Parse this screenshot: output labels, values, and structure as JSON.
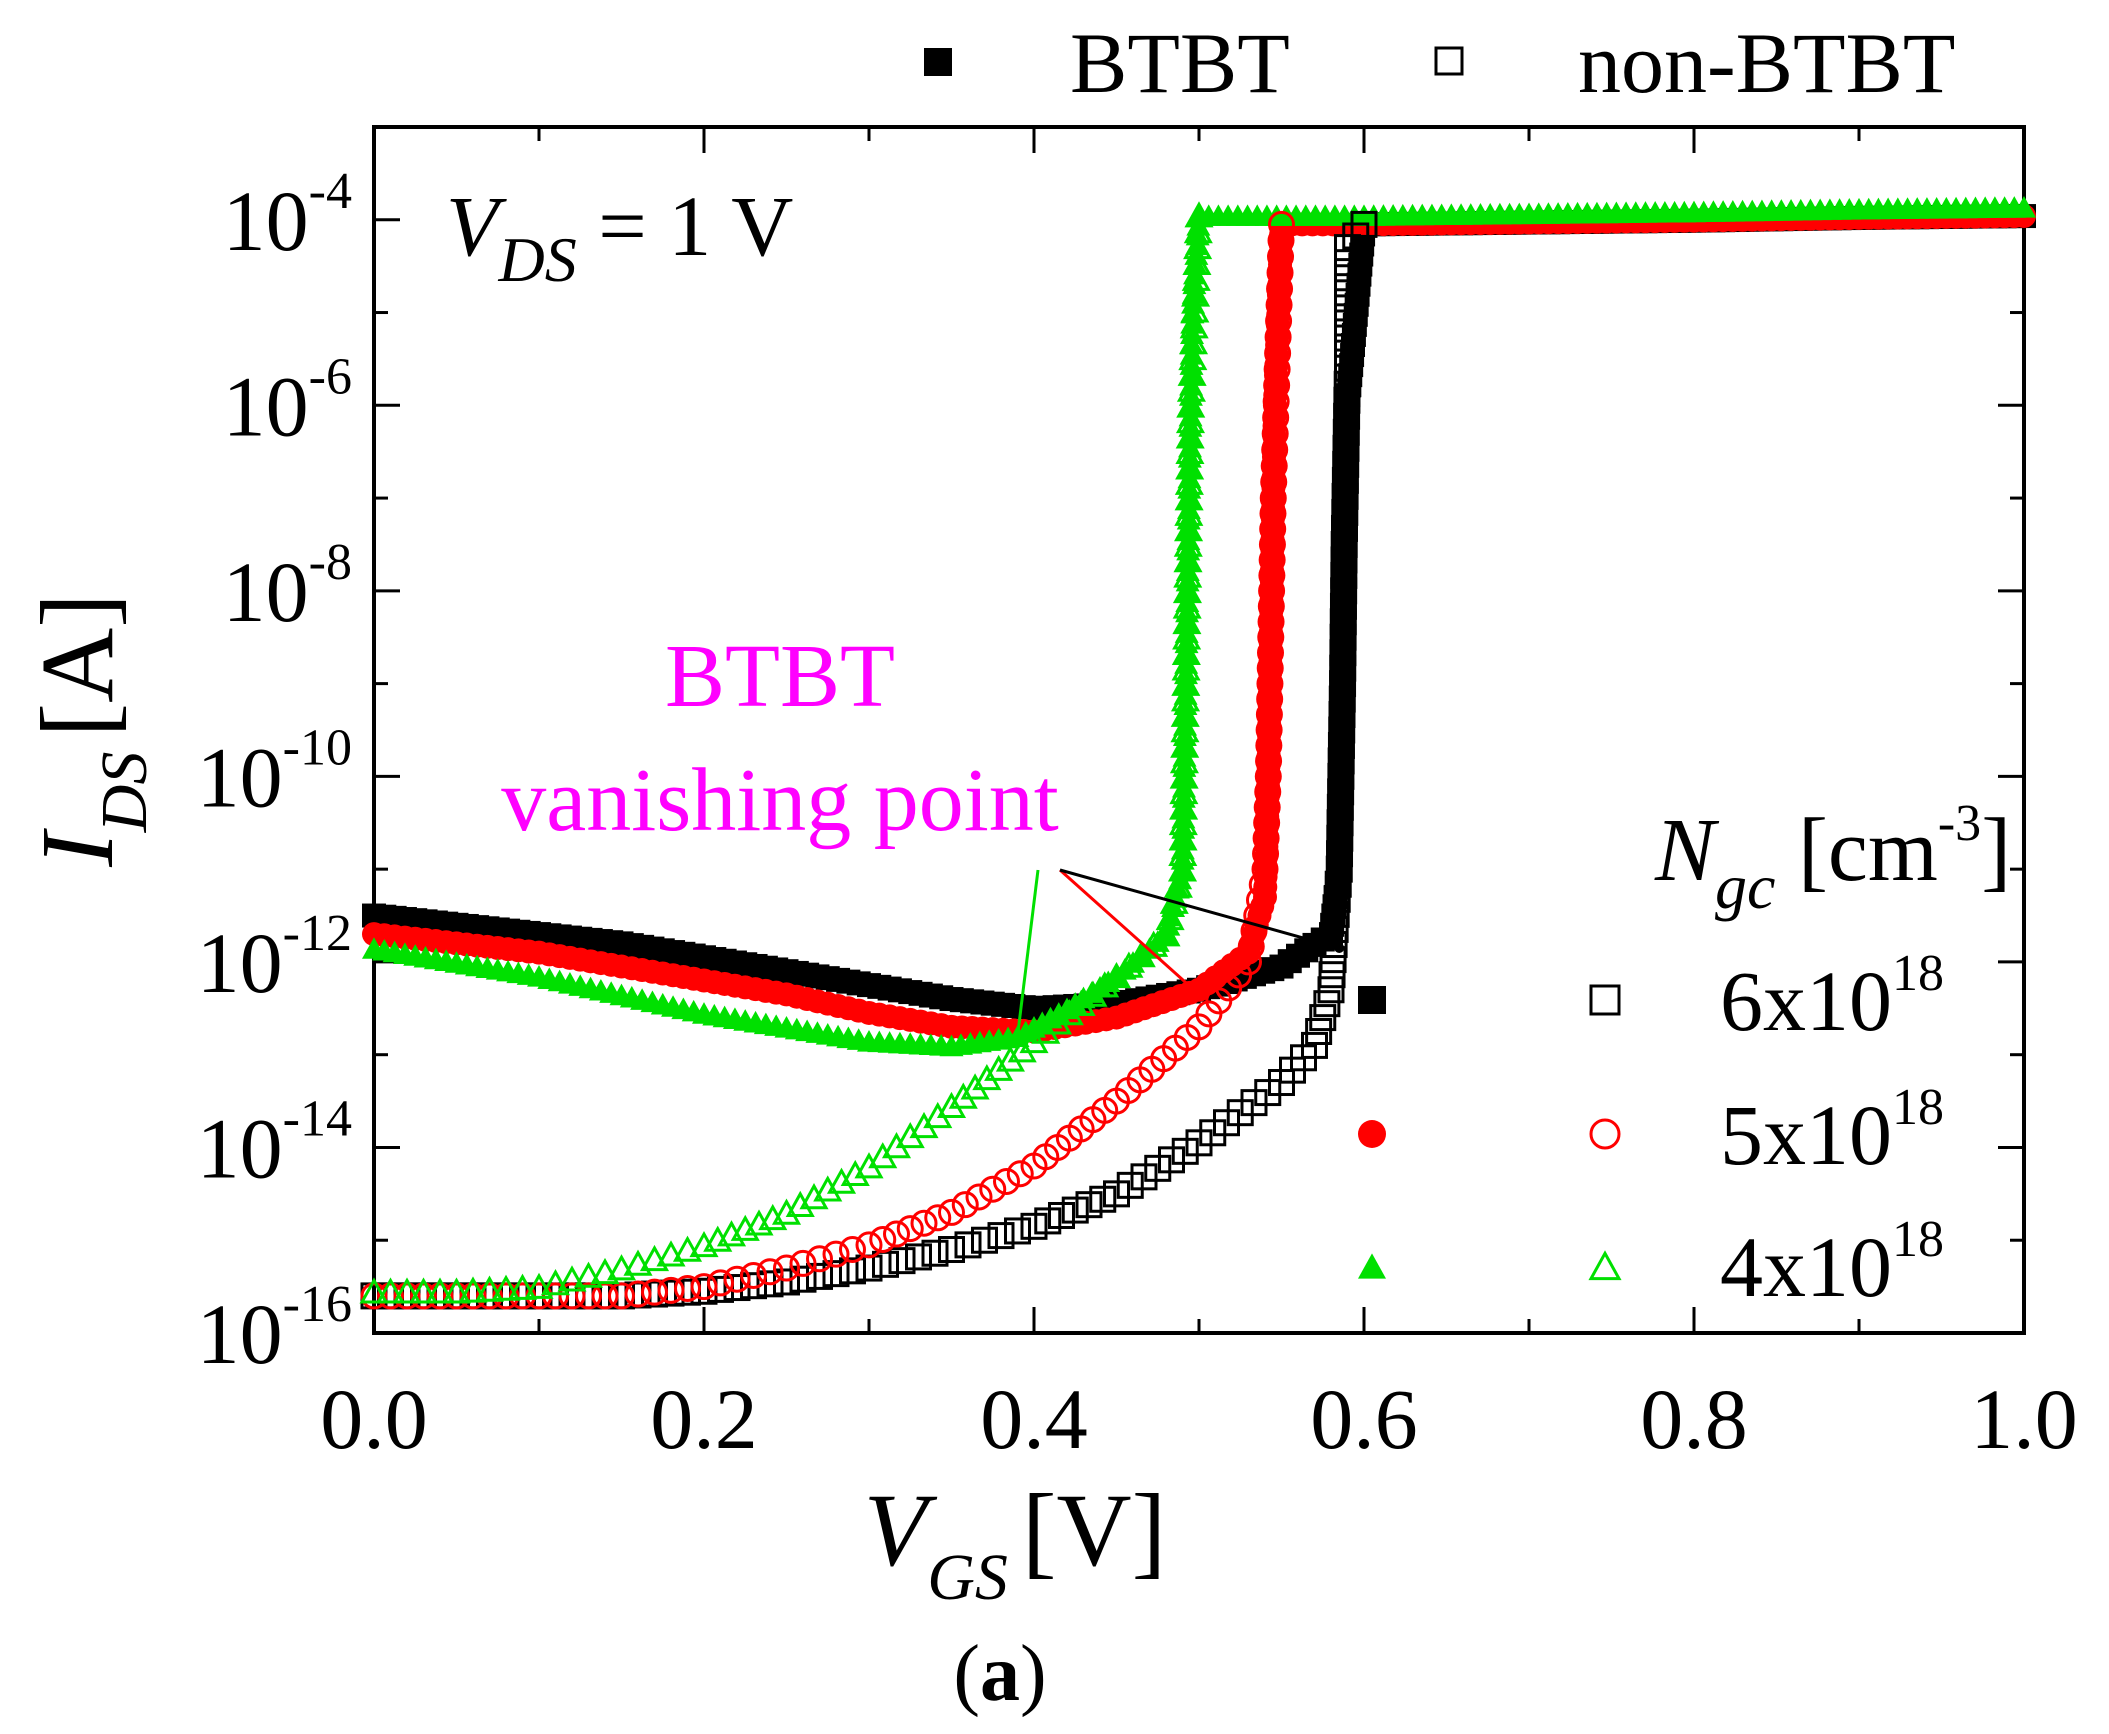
{
  "figure_label_parts": [
    "(",
    "a",
    ")"
  ],
  "colors": {
    "black": "#000000",
    "red": "#ff0000",
    "green": "#00e000",
    "magenta": "#ff00ff"
  },
  "chart_data": {
    "type": "scatter",
    "title": "",
    "xlabel": {
      "main": "V",
      "sub": "GS",
      "unit": "[V]"
    },
    "ylabel": {
      "main": "I",
      "sub": "DS",
      "unit": "[A]"
    },
    "xlim": [
      0.0,
      1.0
    ],
    "ylim_log10": [
      -16,
      -3
    ],
    "yscale": "log",
    "x_ticks": [
      "0.0",
      "0.2",
      "0.4",
      "0.6",
      "0.8",
      "1.0"
    ],
    "y_ticks": [
      {
        "base": "10",
        "exp": "-4",
        "value": -4
      },
      {
        "base": "10",
        "exp": "-6",
        "value": -6
      },
      {
        "base": "10",
        "exp": "-8",
        "value": -8
      },
      {
        "base": "10",
        "exp": "-10",
        "value": -10
      },
      {
        "base": "10",
        "exp": "-12",
        "value": -12
      },
      {
        "base": "10",
        "exp": "-14",
        "value": -14
      },
      {
        "base": "10",
        "exp": "-16",
        "value": -16
      }
    ],
    "condition": {
      "main": "V",
      "sub": "DS",
      "value": " = 1 V"
    },
    "legend_top": [
      {
        "marker": "filled-square",
        "label": "BTBT"
      },
      {
        "marker": "open-square",
        "label": "non-BTBT"
      }
    ],
    "legend_right": {
      "title": {
        "main": "N",
        "sub": "gc",
        "unit": " [cm",
        "exp": "-3",
        "close": "]"
      },
      "entries": [
        {
          "label_base": "6x10",
          "label_exp": "18",
          "color": "#000000",
          "shape": "square"
        },
        {
          "label_base": "5x10",
          "label_exp": "18",
          "color": "#ff0000",
          "shape": "circle"
        },
        {
          "label_base": "4x10",
          "label_exp": "18",
          "color": "#00e000",
          "shape": "triangle"
        }
      ]
    },
    "annotation": {
      "lines": [
        "BTBT",
        "vanishing point"
      ],
      "color": "#ff00ff",
      "points": [
        {
          "x": 0.39,
          "log10_y": -12.8,
          "color": "#00e000"
        },
        {
          "x": 0.5,
          "log10_y": -12.35,
          "color": "#ff0000"
        },
        {
          "x": 0.585,
          "log10_y": -11.85,
          "color": "#000000"
        }
      ]
    },
    "series": [
      {
        "name": "BTBT 6x10^18",
        "color": "#000000",
        "marker": "square",
        "filled": true,
        "points": [
          [
            0.0,
            -11.5
          ],
          [
            0.05,
            -11.6
          ],
          [
            0.1,
            -11.7
          ],
          [
            0.15,
            -11.8
          ],
          [
            0.2,
            -11.95
          ],
          [
            0.25,
            -12.1
          ],
          [
            0.3,
            -12.25
          ],
          [
            0.35,
            -12.4
          ],
          [
            0.4,
            -12.5
          ],
          [
            0.45,
            -12.45
          ],
          [
            0.5,
            -12.3
          ],
          [
            0.55,
            -12.05
          ],
          [
            0.58,
            -11.7
          ],
          [
            0.585,
            -11.0
          ],
          [
            0.586,
            -10.0
          ],
          [
            0.587,
            -9.0
          ],
          [
            0.588,
            -8.0
          ],
          [
            0.589,
            -7.0
          ],
          [
            0.59,
            -6.0
          ],
          [
            0.6,
            -4.05
          ],
          [
            0.7,
            -4.03
          ],
          [
            0.8,
            -4.01
          ],
          [
            0.9,
            -3.98
          ],
          [
            1.0,
            -3.96
          ]
        ]
      },
      {
        "name": "BTBT 5x10^18",
        "color": "#ff0000",
        "marker": "circle",
        "filled": true,
        "points": [
          [
            0.0,
            -11.7
          ],
          [
            0.05,
            -11.8
          ],
          [
            0.1,
            -11.9
          ],
          [
            0.15,
            -12.05
          ],
          [
            0.2,
            -12.2
          ],
          [
            0.25,
            -12.35
          ],
          [
            0.3,
            -12.55
          ],
          [
            0.35,
            -12.7
          ],
          [
            0.4,
            -12.75
          ],
          [
            0.45,
            -12.6
          ],
          [
            0.5,
            -12.3
          ],
          [
            0.53,
            -11.9
          ],
          [
            0.54,
            -11.3
          ],
          [
            0.542,
            -10.0
          ],
          [
            0.543,
            -9.0
          ],
          [
            0.544,
            -8.0
          ],
          [
            0.545,
            -7.0
          ],
          [
            0.546,
            -6.0
          ],
          [
            0.55,
            -4.05
          ],
          [
            0.6,
            -4.05
          ],
          [
            0.7,
            -4.03
          ],
          [
            0.8,
            -4.01
          ],
          [
            0.9,
            -3.98
          ],
          [
            1.0,
            -3.96
          ]
        ]
      },
      {
        "name": "BTBT 4x10^18",
        "color": "#00e000",
        "marker": "triangle",
        "filled": true,
        "points": [
          [
            0.0,
            -11.85
          ],
          [
            0.05,
            -12.0
          ],
          [
            0.1,
            -12.15
          ],
          [
            0.15,
            -12.35
          ],
          [
            0.2,
            -12.55
          ],
          [
            0.25,
            -12.7
          ],
          [
            0.3,
            -12.85
          ],
          [
            0.35,
            -12.9
          ],
          [
            0.39,
            -12.8
          ],
          [
            0.42,
            -12.5
          ],
          [
            0.45,
            -12.15
          ],
          [
            0.48,
            -11.7
          ],
          [
            0.49,
            -11.0
          ],
          [
            0.491,
            -10.0
          ],
          [
            0.492,
            -9.0
          ],
          [
            0.493,
            -8.0
          ],
          [
            0.494,
            -7.0
          ],
          [
            0.495,
            -6.0
          ],
          [
            0.496,
            -5.0
          ],
          [
            0.5,
            -3.95
          ],
          [
            0.6,
            -3.95
          ],
          [
            0.7,
            -3.93
          ],
          [
            0.8,
            -3.91
          ],
          [
            0.9,
            -3.88
          ],
          [
            1.0,
            -3.86
          ]
        ]
      },
      {
        "name": "non-BTBT 6x10^18",
        "color": "#000000",
        "marker": "square",
        "filled": false,
        "points": [
          [
            0.0,
            -15.6
          ],
          [
            0.05,
            -15.6
          ],
          [
            0.1,
            -15.6
          ],
          [
            0.15,
            -15.6
          ],
          [
            0.2,
            -15.55
          ],
          [
            0.25,
            -15.45
          ],
          [
            0.3,
            -15.3
          ],
          [
            0.35,
            -15.1
          ],
          [
            0.4,
            -14.85
          ],
          [
            0.45,
            -14.5
          ],
          [
            0.5,
            -13.95
          ],
          [
            0.55,
            -13.3
          ],
          [
            0.57,
            -12.9
          ],
          [
            0.58,
            -12.3
          ],
          [
            0.585,
            -11.0
          ],
          [
            0.587,
            -9.0
          ],
          [
            0.588,
            -7.5
          ],
          [
            0.59,
            -5.6
          ],
          [
            0.59,
            -4.3
          ],
          [
            0.6,
            -4.05
          ]
        ]
      },
      {
        "name": "non-BTBT 5x10^18",
        "color": "#ff0000",
        "marker": "circle",
        "filled": false,
        "points": [
          [
            0.0,
            -15.6
          ],
          [
            0.05,
            -15.6
          ],
          [
            0.1,
            -15.6
          ],
          [
            0.15,
            -15.6
          ],
          [
            0.2,
            -15.5
          ],
          [
            0.25,
            -15.3
          ],
          [
            0.3,
            -15.05
          ],
          [
            0.35,
            -14.7
          ],
          [
            0.4,
            -14.2
          ],
          [
            0.45,
            -13.5
          ],
          [
            0.5,
            -12.7
          ],
          [
            0.53,
            -12.0
          ],
          [
            0.54,
            -11.0
          ],
          [
            0.542,
            -10.0
          ],
          [
            0.543,
            -9.0
          ],
          [
            0.544,
            -8.0
          ],
          [
            0.545,
            -7.0
          ],
          [
            0.55,
            -4.05
          ]
        ]
      },
      {
        "name": "non-BTBT 4x10^18",
        "color": "#00e000",
        "marker": "triangle",
        "filled": false,
        "points": [
          [
            0.0,
            -15.55
          ],
          [
            0.05,
            -15.55
          ],
          [
            0.1,
            -15.5
          ],
          [
            0.15,
            -15.3
          ],
          [
            0.2,
            -15.05
          ],
          [
            0.25,
            -14.7
          ],
          [
            0.3,
            -14.2
          ],
          [
            0.35,
            -13.55
          ],
          [
            0.4,
            -12.85
          ],
          [
            0.45,
            -12.15
          ],
          [
            0.48,
            -11.7
          ],
          [
            0.49,
            -11.0
          ],
          [
            0.491,
            -10.0
          ],
          [
            0.492,
            -9.0
          ],
          [
            0.493,
            -8.0
          ],
          [
            0.494,
            -7.0
          ],
          [
            0.495,
            -6.0
          ],
          [
            0.5,
            -3.95
          ]
        ]
      }
    ]
  }
}
